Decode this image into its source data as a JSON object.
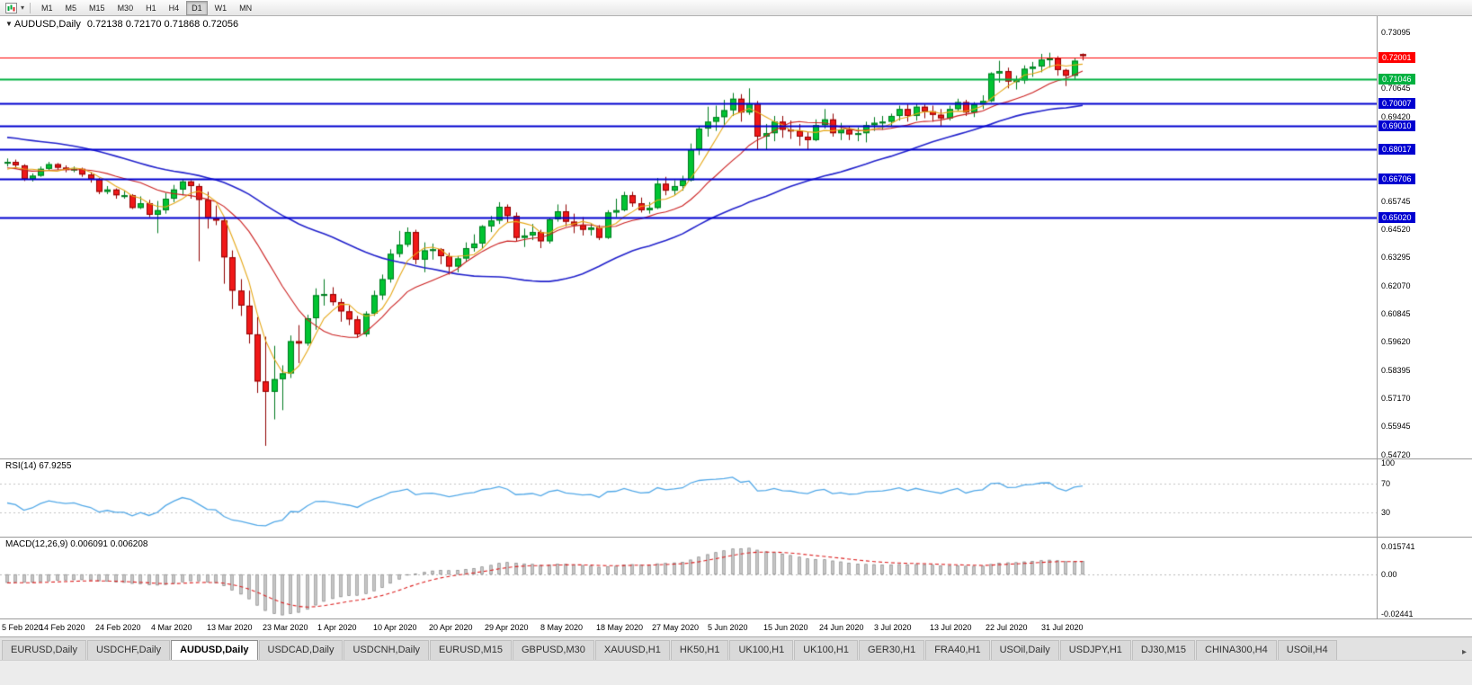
{
  "toolbar": {
    "timeframes": [
      "M1",
      "M5",
      "M15",
      "M30",
      "H1",
      "H4",
      "D1",
      "W1",
      "MN"
    ],
    "active_timeframe": "D1"
  },
  "chart": {
    "header": {
      "collapse_arrow": "▼",
      "symbol": "AUDUSD,Daily",
      "ohlc": "0.72138 0.72170 0.71868 0.72056"
    },
    "price_axis": [
      {
        "text": "0.73095",
        "price": 0.73095
      },
      {
        "text": "0.70645",
        "price": 0.70645
      },
      {
        "text": "0.69420",
        "price": 0.6942
      },
      {
        "text": "0.65745",
        "price": 0.65745
      },
      {
        "text": "0.64520",
        "price": 0.6452
      },
      {
        "text": "0.63295",
        "price": 0.63295
      },
      {
        "text": "0.62070",
        "price": 0.6207
      },
      {
        "text": "0.60845",
        "price": 0.60845
      },
      {
        "text": "0.59620",
        "price": 0.5962
      },
      {
        "text": "0.58395",
        "price": 0.58395
      },
      {
        "text": "0.57170",
        "price": 0.5717
      },
      {
        "text": "0.55945",
        "price": 0.55945
      },
      {
        "text": "0.54720",
        "price": 0.5472
      }
    ],
    "date_axis": [
      "5 Feb 2020",
      "14 Feb 2020",
      "24 Feb 2020",
      "4 Mar 2020",
      "13 Mar 2020",
      "23 Mar 2020",
      "1 Apr 2020",
      "10 Apr 2020",
      "20 Apr 2020",
      "29 Apr 2020",
      "8 May 2020",
      "18 May 2020",
      "27 May 2020",
      "5 Jun 2020",
      "15 Jun 2020",
      "24 Jun 2020",
      "3 Jul 2020",
      "13 Jul 2020",
      "22 Jul 2020",
      "31 Jul 2020"
    ]
  },
  "rsi": {
    "label": "RSI(14) 67.9255",
    "axis": [
      {
        "text": "100",
        "value": 100
      },
      {
        "text": "70",
        "value": 70
      },
      {
        "text": "30",
        "value": 30
      }
    ]
  },
  "macd": {
    "label": "MACD(12,26,9) 0.006091 0.006208",
    "axis": [
      {
        "text": "0.015741",
        "value": 0.015741
      },
      {
        "text": "0.00",
        "value": 0
      },
      {
        "text": "-0.02441",
        "value": -0.02441
      }
    ]
  },
  "tabs": {
    "scroll_right": "▸",
    "items": [
      {
        "label": "EURUSD,Daily"
      },
      {
        "label": "USDCHF,Daily"
      },
      {
        "label": "AUDUSD,Daily",
        "active": true
      },
      {
        "label": "USDCAD,Daily"
      },
      {
        "label": "USDCNH,Daily"
      },
      {
        "label": "EURUSD,M15"
      },
      {
        "label": "GBPUSD,M30"
      },
      {
        "label": "XAUUSD,H1"
      },
      {
        "label": "HK50,H1"
      },
      {
        "label": "UK100,H1"
      },
      {
        "label": "UK100,H1"
      },
      {
        "label": "GER30,H1"
      },
      {
        "label": "FRA40,H1"
      },
      {
        "label": "USOil,Daily"
      },
      {
        "label": "USDJPY,H1"
      },
      {
        "label": "DJ30,M15"
      },
      {
        "label": "CHINA300,H4"
      },
      {
        "label": "USOil,H4"
      }
    ]
  },
  "chart_data": {
    "type": "candlestick",
    "symbol": "AUDUSD",
    "timeframe": "Daily",
    "last_bar": {
      "open": 0.72138,
      "high": 0.7217,
      "low": 0.71868,
      "close": 0.72056
    },
    "price_range": {
      "min": 0.5455,
      "max": 0.7379
    },
    "levels": [
      {
        "label": "0.72001",
        "price": 0.72001,
        "color": "#FF0000",
        "width": 1.2
      },
      {
        "label": "0.71046",
        "price": 0.71046,
        "color": "#00B140",
        "width": 2
      },
      {
        "label": "0.70007",
        "price": 0.70007,
        "color": "#0000D0",
        "width": 1.8
      },
      {
        "label": "0.69010",
        "price": 0.6901,
        "color": "#0000D0",
        "width": 1.8
      },
      {
        "label": "0.68017",
        "price": 0.68017,
        "color": "#0000D0",
        "width": 1.8
      },
      {
        "label": "0.66706",
        "price": 0.66706,
        "color": "#0000D0",
        "width": 1.8
      },
      {
        "label": "0.65020",
        "price": 0.6502,
        "color": "#0000D0",
        "width": 1.8
      }
    ],
    "moving_averages": [
      {
        "period": 40,
        "color": "#2222CC",
        "width": 1.6
      },
      {
        "period": 13,
        "color": "#CC2020",
        "width": 1.1
      },
      {
        "period": 5,
        "color": "#E6A817",
        "width": 1.1
      }
    ],
    "rsi": {
      "period": 14,
      "current": 67.9255,
      "guides": [
        70,
        30
      ],
      "color": "#53A9E8"
    },
    "macd": {
      "fast": 12,
      "slow": 26,
      "signal": 9,
      "current_macd": 0.006091,
      "current_signal": 0.006208,
      "histogram_color": "#cfcfcf",
      "histogram_border": "#8a8a8a",
      "signal_color": "#DD2222"
    },
    "ma_warmup_closes": [
      0.682,
      0.684,
      0.6845,
      0.685,
      0.684,
      0.6855,
      0.686,
      0.688,
      0.6885,
      0.687,
      0.688,
      0.689,
      0.69,
      0.693,
      0.696,
      0.6955,
      0.6975,
      0.6985,
      0.7,
      0.702,
      0.7,
      0.6995,
      0.6985,
      0.6925,
      0.69,
      0.6915,
      0.6895,
      0.687,
      0.688,
      0.6885,
      0.686,
      0.6845,
      0.6825,
      0.6805,
      0.6775,
      0.676,
      0.6735,
      0.671,
      0.67,
      0.669,
      0.6695,
      0.672,
      0.669,
      0.6705,
      0.669,
      0.6735
    ],
    "candles": [
      [
        0.674,
        0.676,
        0.6725,
        0.6745
      ],
      [
        0.6745,
        0.6755,
        0.6715,
        0.673
      ],
      [
        0.673,
        0.6735,
        0.6662,
        0.667
      ],
      [
        0.667,
        0.6695,
        0.666,
        0.6685
      ],
      [
        0.6685,
        0.6725,
        0.668,
        0.6715
      ],
      [
        0.6715,
        0.6745,
        0.671,
        0.6735
      ],
      [
        0.6735,
        0.674,
        0.671,
        0.672
      ],
      [
        0.672,
        0.673,
        0.67,
        0.671
      ],
      [
        0.671,
        0.6725,
        0.67,
        0.6715
      ],
      [
        0.6715,
        0.672,
        0.668,
        0.669
      ],
      [
        0.669,
        0.67,
        0.6655,
        0.667
      ],
      [
        0.667,
        0.6675,
        0.6605,
        0.6615
      ],
      [
        0.6615,
        0.664,
        0.6605,
        0.6625
      ],
      [
        0.6625,
        0.663,
        0.6585,
        0.66
      ],
      [
        0.66,
        0.662,
        0.6585,
        0.66
      ],
      [
        0.66,
        0.6605,
        0.654,
        0.6545
      ],
      [
        0.6545,
        0.6595,
        0.654,
        0.6565
      ],
      [
        0.6565,
        0.658,
        0.6505,
        0.6515
      ],
      [
        0.6515,
        0.6575,
        0.6435,
        0.6535
      ],
      [
        0.6535,
        0.661,
        0.652,
        0.6585
      ],
      [
        0.6585,
        0.6645,
        0.657,
        0.6625
      ],
      [
        0.6625,
        0.667,
        0.66,
        0.666
      ],
      [
        0.666,
        0.6665,
        0.6585,
        0.664
      ],
      [
        0.664,
        0.665,
        0.6313,
        0.658
      ],
      [
        0.658,
        0.6615,
        0.6455,
        0.65
      ],
      [
        0.65,
        0.6555,
        0.647,
        0.649
      ],
      [
        0.649,
        0.65,
        0.6215,
        0.633
      ],
      [
        0.633,
        0.636,
        0.6105,
        0.6185
      ],
      [
        0.6185,
        0.6235,
        0.6075,
        0.612
      ],
      [
        0.612,
        0.6185,
        0.5955,
        0.5995
      ],
      [
        0.5995,
        0.607,
        0.574,
        0.579
      ],
      [
        0.579,
        0.5985,
        0.551,
        0.5745
      ],
      [
        0.5745,
        0.5945,
        0.5625,
        0.58
      ],
      [
        0.58,
        0.586,
        0.5665,
        0.5825
      ],
      [
        0.5825,
        0.599,
        0.5805,
        0.5965
      ],
      [
        0.5965,
        0.6035,
        0.587,
        0.5955
      ],
      [
        0.5955,
        0.608,
        0.5945,
        0.6065
      ],
      [
        0.6065,
        0.6195,
        0.6015,
        0.6165
      ],
      [
        0.6165,
        0.6235,
        0.612,
        0.617
      ],
      [
        0.617,
        0.62,
        0.612,
        0.6135
      ],
      [
        0.6135,
        0.615,
        0.605,
        0.6095
      ],
      [
        0.6095,
        0.612,
        0.6035,
        0.606
      ],
      [
        0.606,
        0.6075,
        0.598,
        0.5995
      ],
      [
        0.5995,
        0.6095,
        0.5985,
        0.6085
      ],
      [
        0.6085,
        0.6185,
        0.6075,
        0.6165
      ],
      [
        0.6165,
        0.6255,
        0.6145,
        0.6235
      ],
      [
        0.6235,
        0.6365,
        0.622,
        0.6345
      ],
      [
        0.6345,
        0.6445,
        0.633,
        0.6385
      ],
      [
        0.6385,
        0.646,
        0.6375,
        0.644
      ],
      [
        0.644,
        0.645,
        0.63,
        0.632
      ],
      [
        0.632,
        0.6395,
        0.6265,
        0.636
      ],
      [
        0.636,
        0.639,
        0.632,
        0.6365
      ],
      [
        0.6365,
        0.637,
        0.63,
        0.6335
      ],
      [
        0.6335,
        0.635,
        0.6255,
        0.629
      ],
      [
        0.629,
        0.6335,
        0.6265,
        0.6325
      ],
      [
        0.6325,
        0.6395,
        0.631,
        0.637
      ],
      [
        0.637,
        0.643,
        0.6355,
        0.639
      ],
      [
        0.639,
        0.647,
        0.637,
        0.6465
      ],
      [
        0.6465,
        0.651,
        0.644,
        0.649
      ],
      [
        0.649,
        0.657,
        0.6475,
        0.655
      ],
      [
        0.655,
        0.656,
        0.648,
        0.651
      ],
      [
        0.651,
        0.6525,
        0.64,
        0.6415
      ],
      [
        0.6415,
        0.6455,
        0.6375,
        0.6425
      ],
      [
        0.6425,
        0.6475,
        0.6405,
        0.644
      ],
      [
        0.644,
        0.645,
        0.637,
        0.64
      ],
      [
        0.64,
        0.65,
        0.639,
        0.6495
      ],
      [
        0.6495,
        0.656,
        0.6485,
        0.653
      ],
      [
        0.653,
        0.656,
        0.6465,
        0.6485
      ],
      [
        0.6485,
        0.652,
        0.6435,
        0.647
      ],
      [
        0.647,
        0.6505,
        0.6425,
        0.645
      ],
      [
        0.645,
        0.6475,
        0.6425,
        0.646
      ],
      [
        0.646,
        0.647,
        0.6405,
        0.6415
      ],
      [
        0.6415,
        0.6535,
        0.641,
        0.6525
      ],
      [
        0.6525,
        0.6585,
        0.6505,
        0.6535
      ],
      [
        0.6535,
        0.6615,
        0.653,
        0.66
      ],
      [
        0.66,
        0.6615,
        0.655,
        0.6565
      ],
      [
        0.6565,
        0.659,
        0.6525,
        0.6535
      ],
      [
        0.6535,
        0.657,
        0.652,
        0.6545
      ],
      [
        0.6545,
        0.6675,
        0.654,
        0.665
      ],
      [
        0.665,
        0.668,
        0.66,
        0.662
      ],
      [
        0.662,
        0.6665,
        0.66,
        0.664
      ],
      [
        0.664,
        0.6685,
        0.662,
        0.6665
      ],
      [
        0.6665,
        0.6825,
        0.666,
        0.68
      ],
      [
        0.68,
        0.69,
        0.6775,
        0.689
      ],
      [
        0.689,
        0.6985,
        0.6855,
        0.692
      ],
      [
        0.692,
        0.699,
        0.688,
        0.694
      ],
      [
        0.694,
        0.7015,
        0.6905,
        0.697
      ],
      [
        0.697,
        0.7045,
        0.6945,
        0.702
      ],
      [
        0.702,
        0.704,
        0.692,
        0.696
      ],
      [
        0.696,
        0.7065,
        0.695,
        0.7
      ],
      [
        0.7,
        0.701,
        0.68,
        0.6855
      ],
      [
        0.6855,
        0.691,
        0.68,
        0.687
      ],
      [
        0.687,
        0.6945,
        0.6835,
        0.692
      ],
      [
        0.692,
        0.6945,
        0.685,
        0.6885
      ],
      [
        0.6885,
        0.6925,
        0.6845,
        0.688
      ],
      [
        0.688,
        0.691,
        0.6815,
        0.6855
      ],
      [
        0.6855,
        0.6875,
        0.68,
        0.684
      ],
      [
        0.684,
        0.693,
        0.6835,
        0.6905
      ],
      [
        0.6905,
        0.6975,
        0.689,
        0.693
      ],
      [
        0.693,
        0.6955,
        0.6855,
        0.687
      ],
      [
        0.687,
        0.6915,
        0.684,
        0.6885
      ],
      [
        0.6885,
        0.69,
        0.684,
        0.6865
      ],
      [
        0.6865,
        0.6895,
        0.6835,
        0.687
      ],
      [
        0.687,
        0.692,
        0.683,
        0.6905
      ],
      [
        0.6905,
        0.694,
        0.688,
        0.6915
      ],
      [
        0.6915,
        0.6945,
        0.6885,
        0.692
      ],
      [
        0.692,
        0.6955,
        0.69,
        0.6945
      ],
      [
        0.6945,
        0.699,
        0.6925,
        0.6975
      ],
      [
        0.6975,
        0.6995,
        0.692,
        0.6945
      ],
      [
        0.6945,
        0.7,
        0.6925,
        0.6985
      ],
      [
        0.6985,
        0.6995,
        0.6935,
        0.6965
      ],
      [
        0.6965,
        0.699,
        0.692,
        0.695
      ],
      [
        0.695,
        0.6975,
        0.69,
        0.6935
      ],
      [
        0.6935,
        0.699,
        0.6925,
        0.6975
      ],
      [
        0.6975,
        0.702,
        0.6965,
        0.7005
      ],
      [
        0.7005,
        0.7015,
        0.6945,
        0.696
      ],
      [
        0.696,
        0.7005,
        0.694,
        0.6995
      ],
      [
        0.6995,
        0.7035,
        0.6975,
        0.701
      ],
      [
        0.701,
        0.7135,
        0.7005,
        0.713
      ],
      [
        0.713,
        0.7185,
        0.709,
        0.714
      ],
      [
        0.714,
        0.7155,
        0.7065,
        0.7095
      ],
      [
        0.7095,
        0.712,
        0.706,
        0.71
      ],
      [
        0.71,
        0.7165,
        0.7085,
        0.715
      ],
      [
        0.715,
        0.718,
        0.7115,
        0.716
      ],
      [
        0.716,
        0.7215,
        0.7135,
        0.719
      ],
      [
        0.719,
        0.722,
        0.7155,
        0.7195
      ],
      [
        0.7195,
        0.7205,
        0.712,
        0.7145
      ],
      [
        0.7145,
        0.715,
        0.7075,
        0.712
      ],
      [
        0.712,
        0.7195,
        0.7105,
        0.7185
      ],
      [
        0.72138,
        0.7217,
        0.71868,
        0.72056
      ]
    ]
  }
}
